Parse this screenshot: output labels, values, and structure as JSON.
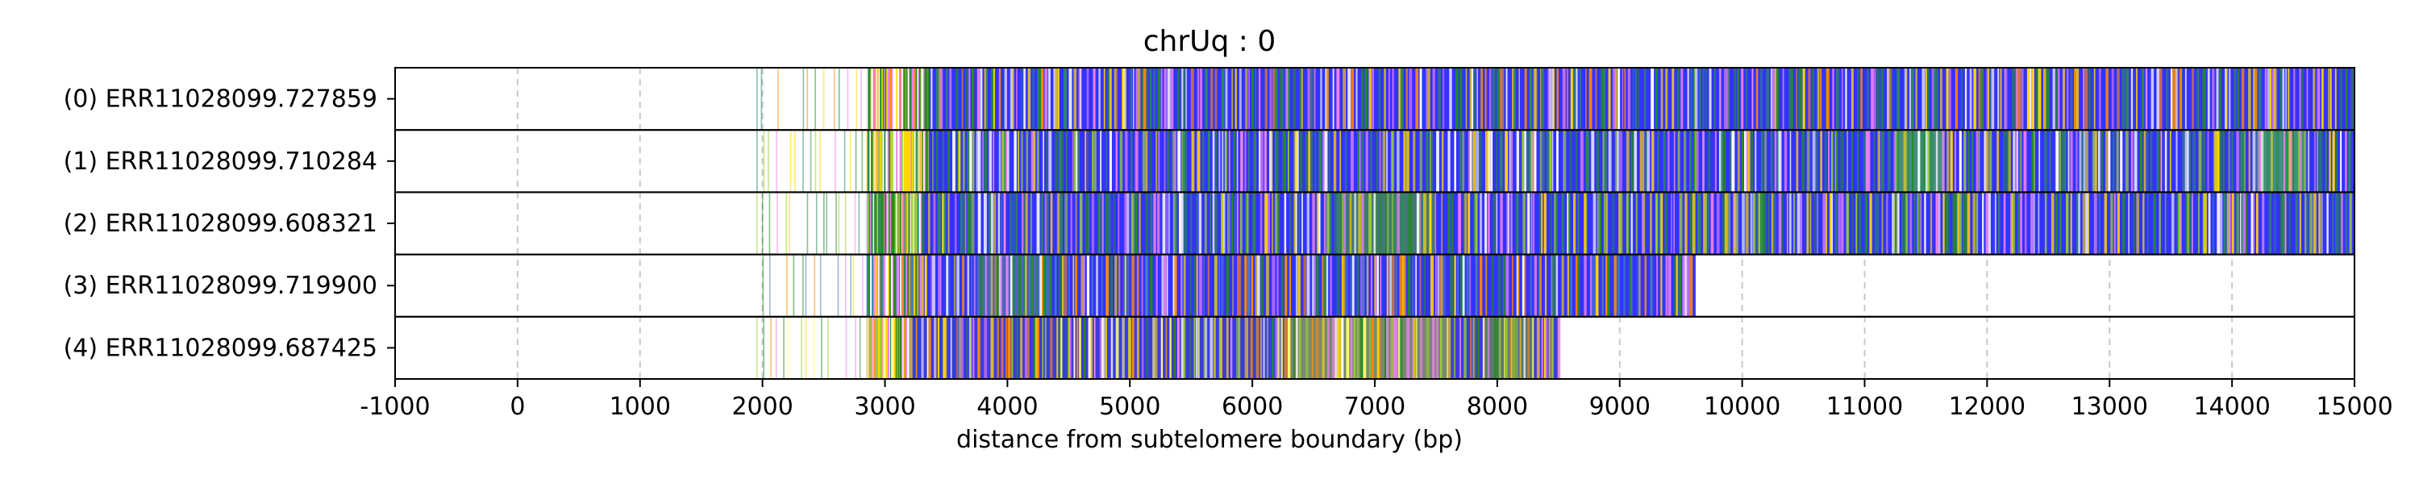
{
  "chart_data": {
    "type": "heatmap",
    "title": "chrUq : 0",
    "xlabel": "distance from subtelomere boundary (bp)",
    "ylabel": "",
    "xlim": [
      -1000,
      15000
    ],
    "xticks": [
      -1000,
      0,
      1000,
      2000,
      3000,
      4000,
      5000,
      6000,
      7000,
      8000,
      9000,
      10000,
      11000,
      12000,
      13000,
      14000,
      15000
    ],
    "grid": "vertical dashed at x ticks",
    "reads": [
      {
        "label": "(0) ERR11028099.727859",
        "start": 1950,
        "end": 15000,
        "dense_start": 2850,
        "segments": [
          {
            "from": 3350,
            "to": 15000,
            "color": "#3333ff"
          }
        ],
        "stripe_colors": [
          "#ffd700",
          "#ff8c00",
          "#ee82ee",
          "#2e8b57",
          "#ffffff",
          "#228b22"
        ]
      },
      {
        "label": "(1) ERR11028099.710284",
        "start": 1950,
        "end": 15000,
        "dense_start": 2850,
        "segments": [
          {
            "from": 3350,
            "to": 15000,
            "color": "#3333ff"
          },
          {
            "from": 11250,
            "to": 11650,
            "color": "#4caf50"
          },
          {
            "from": 14200,
            "to": 14600,
            "color": "#4caf50"
          }
        ],
        "stripe_colors": [
          "#ffd700",
          "#228b22",
          "#9acd32",
          "#ee82ee",
          "#ffffff",
          "#2e8b57"
        ]
      },
      {
        "label": "(2) ERR11028099.608321",
        "start": 1950,
        "end": 15000,
        "dense_start": 2850,
        "segments": [
          {
            "from": 3300,
            "to": 15000,
            "color": "#3333ff"
          },
          {
            "from": 6700,
            "to": 7500,
            "color": "#4c8f4c"
          }
        ],
        "stripe_colors": [
          "#ffd700",
          "#228b22",
          "#9acd32",
          "#ffffff",
          "#ee82ee",
          "#2e8b57"
        ]
      },
      {
        "label": "(3) ERR11028099.719900",
        "start": 2000,
        "end": 9620,
        "dense_start": 2850,
        "segments": [
          {
            "from": 3300,
            "to": 9620,
            "color": "#3333ff"
          },
          {
            "from": 3750,
            "to": 4350,
            "color": "#5577aa"
          }
        ],
        "stripe_colors": [
          "#ffd700",
          "#ff8c00",
          "#228b22",
          "#ee82ee",
          "#ffffff",
          "#4682b4"
        ]
      },
      {
        "label": "(4) ERR11028099.687425",
        "start": 1950,
        "end": 8500,
        "dense_start": 2850,
        "segments": [
          {
            "from": 3200,
            "to": 8500,
            "color": "#3b3bdd"
          },
          {
            "from": 6300,
            "to": 7600,
            "color": "#8fa34f"
          },
          {
            "from": 7900,
            "to": 8300,
            "color": "#6b8f4f"
          }
        ],
        "stripe_colors": [
          "#ffd700",
          "#ff8c00",
          "#9acd32",
          "#228b22",
          "#ffff66",
          "#ee82ee",
          "#ffffff"
        ]
      }
    ]
  }
}
